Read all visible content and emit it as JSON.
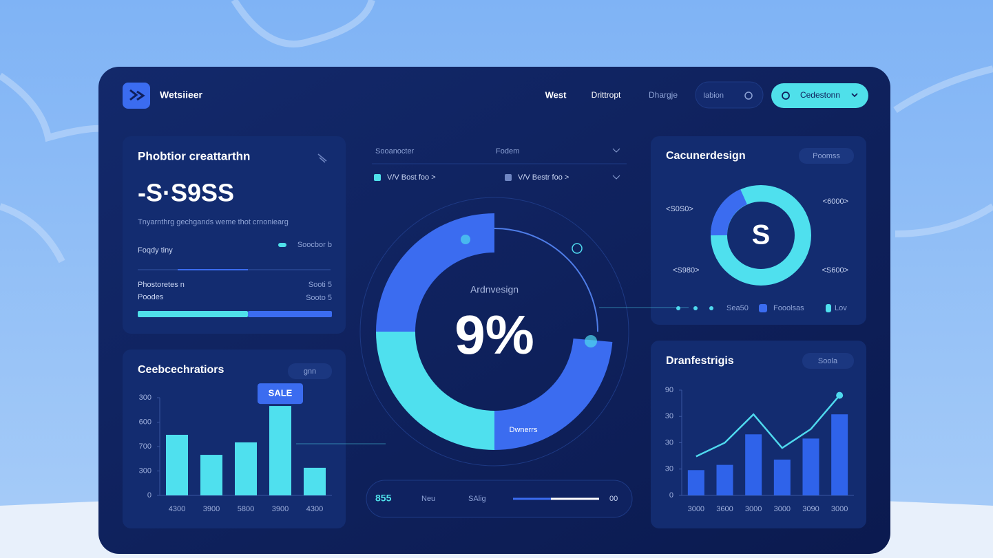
{
  "header": {
    "brand": "Wetsiieer",
    "nav": [
      "West",
      "Drittropt",
      "Dhargje",
      "Iabion"
    ],
    "button": "Cedestonn"
  },
  "summary_card": {
    "title": "Phobtior creattarthn",
    "value": "-S·S9SS",
    "description": "Tnyarnthrg gechgands weme thot crnoniearg",
    "rows": [
      {
        "label": "Foqdy tiny",
        "meta": "Soocbor b"
      },
      {
        "label": "Phostoretes n",
        "meta": "Sooti 5"
      },
      {
        "label": "Poodes",
        "meta": "Sooto 5"
      }
    ]
  },
  "center": {
    "tabs": [
      "Sooanocter",
      "Fodem",
      "V/V Bost foo >",
      "V/V Bestr foo >"
    ],
    "caption": "Ardnvesign",
    "value": "9%",
    "badge": "Dwnerrs",
    "footer": [
      "855",
      "Neu",
      "SAlig",
      "00"
    ]
  },
  "donut_card": {
    "title": "Cacunerdesign",
    "pill": "Poomss",
    "center": "S",
    "labels": [
      "<S0S0>",
      "<6000>",
      "<S980>",
      "<S600>"
    ],
    "legend": [
      "Sea50",
      "Fooolsas",
      "Lov"
    ]
  },
  "chart_data": [
    {
      "type": "bar",
      "title": "Ceebcechratiors",
      "pill": "gnn",
      "annotation": "SALE",
      "categories": [
        "4300",
        "3900",
        "5800",
        "3900",
        "4300"
      ],
      "values": [
        248,
        166,
        217,
        366,
        113
      ],
      "color": "#4fe0ee",
      "ylim": [
        0,
        400
      ],
      "yticks": [
        0,
        {
          "value": 100,
          "label": "300"
        },
        {
          "value": 200,
          "label": "700"
        },
        {
          "value": 300,
          "label": "600"
        },
        {
          "value": 400,
          "label": "300"
        }
      ],
      "grid": false
    },
    {
      "type": "combo",
      "title": "Dranfestrigis",
      "pill": "Soola",
      "categories": [
        "3000",
        "3600",
        "3000",
        "3000",
        "3090",
        "3000"
      ],
      "series": [
        {
          "type": "bar",
          "color": "#2f63ea",
          "values": [
            24,
            29,
            58,
            34,
            54,
            77
          ]
        },
        {
          "type": "line",
          "color": "#4fd9ee",
          "values": [
            37,
            50,
            77,
            45,
            63,
            95
          ]
        }
      ],
      "ylim": [
        0,
        100
      ],
      "yticks": [
        0,
        {
          "value": 25,
          "label": "30"
        },
        {
          "value": 50,
          "label": "30"
        },
        {
          "value": 75,
          "label": "30"
        },
        {
          "value": 100,
          "label": "90"
        }
      ],
      "grid": false
    }
  ]
}
